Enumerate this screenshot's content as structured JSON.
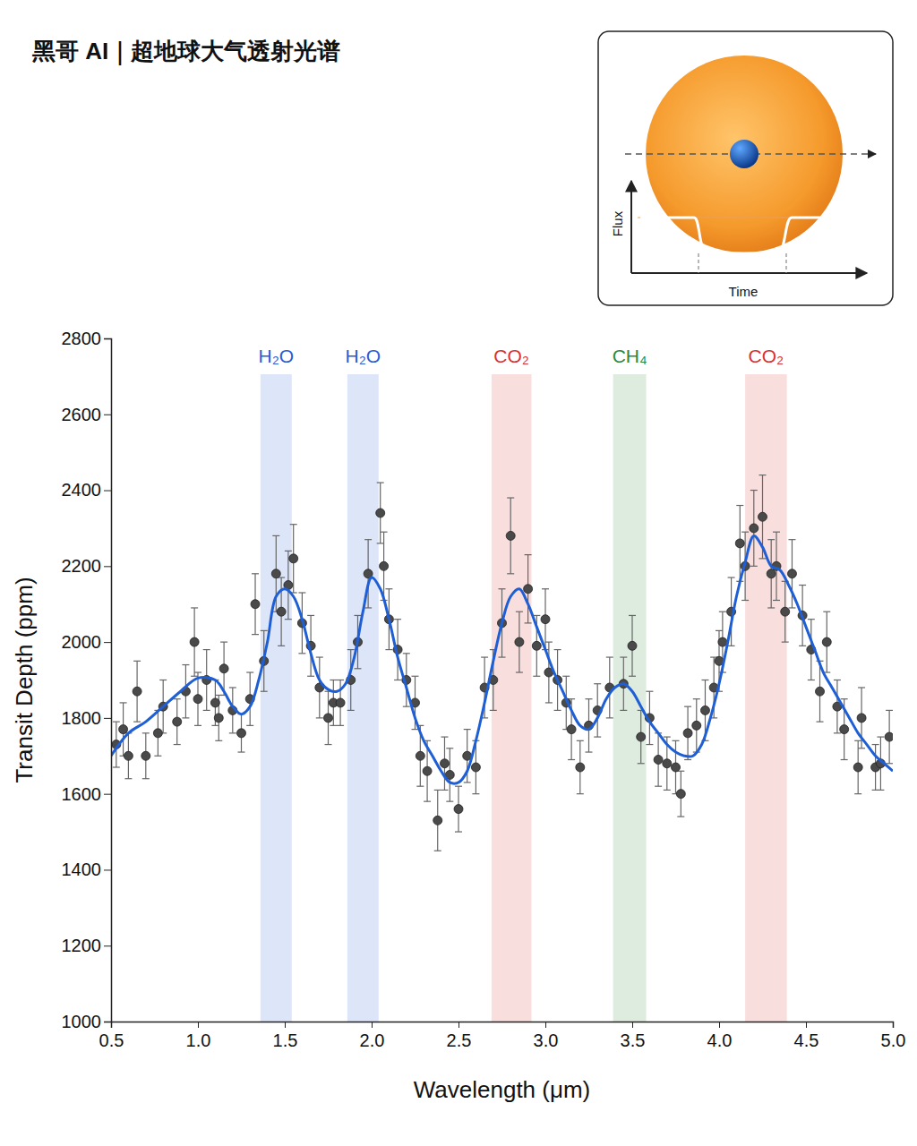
{
  "chart_data": {
    "type": "scatter",
    "title": "黑哥 AI｜超地球大气透射光谱",
    "x_label": "Wavelength (μm)",
    "y_label": "Transit Depth (ppm)",
    "xlim": [
      0.5,
      5.0
    ],
    "ylim": [
      1000,
      2800
    ],
    "xticks": [
      0.5,
      {
        "value": 1,
        "label": "1.0"
      },
      1.5,
      {
        "value": 2,
        "label": "2.0"
      },
      2.5,
      {
        "value": 3,
        "label": "3.0"
      },
      3.5,
      {
        "value": 4,
        "label": "4.0"
      },
      4.5,
      {
        "value": 5,
        "label": "5.0"
      }
    ],
    "yticks": [
      1000,
      1200,
      1400,
      1600,
      1800,
      2000,
      2200,
      2400,
      2600,
      2800
    ],
    "grid": false,
    "bands": [
      {
        "label": "H₂O",
        "range": [
          1.36,
          1.54
        ],
        "color": "#2a5bd7"
      },
      {
        "label": "H₂O",
        "range": [
          1.86,
          2.04
        ],
        "color": "#2a5bd7"
      },
      {
        "label": "CO₂",
        "range": [
          2.69,
          2.92
        ],
        "color": "#d93030"
      },
      {
        "label": "CH₄",
        "range": [
          3.39,
          3.58
        ],
        "color": "#2a8a3a"
      },
      {
        "label": "CO₂",
        "range": [
          4.15,
          4.39
        ],
        "color": "#d93030"
      }
    ],
    "series": [
      {
        "type": "scatter",
        "color": "#4a4a4a",
        "marker": "circle",
        "x": [
          0.53,
          0.57,
          0.6,
          0.65,
          0.7,
          0.77,
          0.8,
          0.88,
          0.93,
          0.98,
          1.0,
          1.05,
          1.1,
          1.12,
          1.15,
          1.2,
          1.25,
          1.3,
          1.33,
          1.38,
          1.45,
          1.48,
          1.52,
          1.55,
          1.6,
          1.65,
          1.7,
          1.75,
          1.78,
          1.82,
          1.88,
          1.92,
          1.98,
          2.05,
          2.07,
          2.1,
          2.15,
          2.2,
          2.25,
          2.28,
          2.32,
          2.38,
          2.42,
          2.45,
          2.5,
          2.55,
          2.6,
          2.65,
          2.7,
          2.75,
          2.8,
          2.85,
          2.9,
          2.95,
          3.0,
          3.02,
          3.07,
          3.12,
          3.15,
          3.2,
          3.25,
          3.3,
          3.37,
          3.45,
          3.5,
          3.55,
          3.6,
          3.65,
          3.7,
          3.75,
          3.78,
          3.82,
          3.87,
          3.92,
          3.97,
          4.0,
          4.02,
          4.07,
          4.12,
          4.15,
          4.2,
          4.25,
          4.3,
          4.33,
          4.38,
          4.42,
          4.48,
          4.53,
          4.58,
          4.62,
          4.68,
          4.72,
          4.8,
          4.82,
          4.9,
          4.93,
          4.98
        ],
        "values": [
          1730,
          1770,
          1700,
          1870,
          1700,
          1760,
          1830,
          1790,
          1870,
          2000,
          1850,
          1900,
          1840,
          1800,
          1930,
          1820,
          1760,
          1850,
          2100,
          1950,
          2180,
          2080,
          2150,
          2220,
          2050,
          1990,
          1880,
          1800,
          1840,
          1840,
          1900,
          2000,
          2180,
          2340,
          2200,
          2060,
          1980,
          1900,
          1840,
          1700,
          1660,
          1530,
          1680,
          1650,
          1560,
          1700,
          1670,
          1880,
          1900,
          2050,
          2280,
          2000,
          2140,
          1990,
          2060,
          1920,
          1900,
          1840,
          1770,
          1670,
          1780,
          1820,
          1880,
          1890,
          1990,
          1750,
          1800,
          1690,
          1680,
          1670,
          1600,
          1760,
          1780,
          1820,
          1880,
          1950,
          2000,
          2080,
          2260,
          2200,
          2300,
          2330,
          2180,
          2200,
          2080,
          2180,
          2070,
          1980,
          1870,
          2000,
          1830,
          1770,
          1670,
          1800,
          1670,
          1680,
          1750
        ],
        "errors": [
          60,
          70,
          60,
          80,
          60,
          60,
          70,
          60,
          70,
          90,
          70,
          80,
          60,
          60,
          70,
          60,
          50,
          70,
          80,
          80,
          100,
          90,
          90,
          90,
          80,
          80,
          80,
          70,
          60,
          60,
          80,
          70,
          90,
          80,
          90,
          80,
          80,
          70,
          70,
          80,
          80,
          80,
          70,
          70,
          60,
          70,
          70,
          80,
          80,
          90,
          100,
          80,
          90,
          80,
          80,
          80,
          80,
          70,
          80,
          70,
          70,
          70,
          80,
          70,
          80,
          70,
          70,
          70,
          70,
          70,
          60,
          70,
          70,
          80,
          80,
          80,
          80,
          90,
          100,
          90,
          100,
          110,
          90,
          90,
          80,
          90,
          80,
          80,
          80,
          80,
          70,
          80,
          70,
          80,
          60,
          70,
          70
        ]
      },
      {
        "type": "line",
        "color": "#1f5fd6",
        "line_style": "solid",
        "x": [
          0.5,
          0.6,
          0.7,
          0.8,
          0.9,
          1.0,
          1.1,
          1.15,
          1.2,
          1.25,
          1.3,
          1.35,
          1.4,
          1.45,
          1.5,
          1.55,
          1.6,
          1.65,
          1.7,
          1.75,
          1.8,
          1.85,
          1.9,
          1.95,
          2.0,
          2.05,
          2.1,
          2.15,
          2.2,
          2.25,
          2.3,
          2.35,
          2.4,
          2.45,
          2.5,
          2.55,
          2.6,
          2.65,
          2.7,
          2.75,
          2.8,
          2.85,
          2.9,
          2.95,
          3.0,
          3.05,
          3.1,
          3.15,
          3.2,
          3.25,
          3.3,
          3.35,
          3.4,
          3.45,
          3.5,
          3.55,
          3.6,
          3.65,
          3.7,
          3.75,
          3.8,
          3.85,
          3.9,
          3.95,
          4.0,
          4.05,
          4.1,
          4.15,
          4.2,
          4.25,
          4.3,
          4.35,
          4.4,
          4.45,
          4.5,
          4.55,
          4.6,
          4.65,
          4.7,
          4.75,
          4.8,
          4.85,
          4.9,
          4.95,
          5.0
        ],
        "values": [
          1700,
          1760,
          1790,
          1830,
          1870,
          1905,
          1900,
          1870,
          1830,
          1810,
          1830,
          1900,
          2000,
          2120,
          2140,
          2120,
          2060,
          1970,
          1900,
          1875,
          1870,
          1890,
          1960,
          2080,
          2170,
          2140,
          2060,
          1960,
          1880,
          1800,
          1740,
          1700,
          1660,
          1630,
          1630,
          1660,
          1740,
          1840,
          1950,
          2050,
          2120,
          2140,
          2100,
          2040,
          1980,
          1920,
          1870,
          1820,
          1780,
          1770,
          1800,
          1850,
          1880,
          1890,
          1870,
          1830,
          1790,
          1760,
          1730,
          1710,
          1700,
          1700,
          1730,
          1800,
          1890,
          2000,
          2120,
          2210,
          2280,
          2250,
          2200,
          2190,
          2150,
          2100,
          2040,
          1980,
          1920,
          1880,
          1840,
          1800,
          1760,
          1730,
          1700,
          1680,
          1660
        ]
      }
    ]
  },
  "inset": {
    "y_label": "Flux",
    "x_label": "Time"
  }
}
